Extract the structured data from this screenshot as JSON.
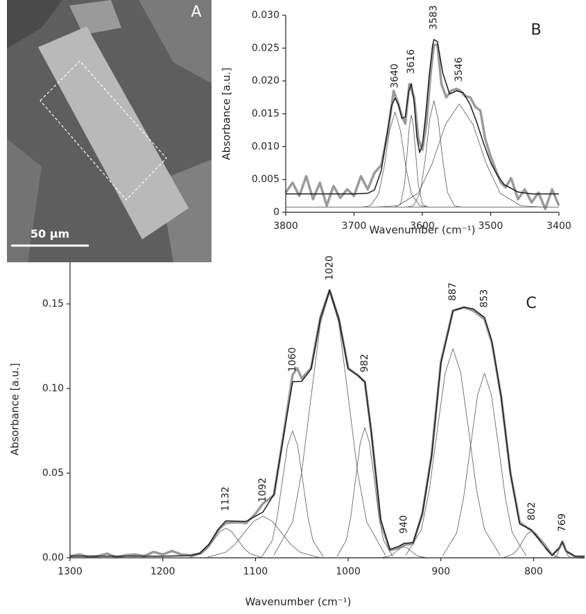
{
  "panel_a": {
    "label": "A",
    "scale_bar": "50 μm"
  },
  "chart_data": [
    {
      "type": "line",
      "panel": "B",
      "x_label": "Wavenumber (cm⁻¹)",
      "y_label": "Absorbance [a.u.]",
      "xlim": [
        3800,
        3400
      ],
      "xticks": [
        3800,
        3700,
        3600,
        3500,
        3400
      ],
      "ylim": [
        0,
        0.03
      ],
      "yticks": [
        0,
        0.005,
        {
          "value": 0.01,
          "label": "0.010"
        },
        0.015,
        {
          "value": 0.02,
          "label": "0.020"
        },
        0.025,
        {
          "value": 0.03,
          "label": "0.030"
        }
      ],
      "series": [
        {
          "color": "#9a9a9a",
          "x": [
            3800,
            3790,
            3780,
            3770,
            3760,
            3750,
            3740,
            3730,
            3720,
            3710,
            3700,
            3690,
            3680,
            3670,
            3660,
            3650,
            3642,
            3636,
            3630,
            3625,
            3619,
            3612,
            3606,
            3600,
            3594,
            3588,
            3583,
            3578,
            3572,
            3565,
            3558,
            3550,
            3544,
            3538,
            3530,
            3522,
            3515,
            3508,
            3500,
            3492,
            3485,
            3478,
            3470,
            3460,
            3450,
            3440,
            3430,
            3420,
            3410,
            3400
          ],
          "values": [
            0.003,
            0.0045,
            0.0025,
            0.0055,
            0.002,
            0.0045,
            0.001,
            0.004,
            0.0022,
            0.0035,
            0.0025,
            0.0055,
            0.0035,
            0.006,
            0.0072,
            0.0125,
            0.0185,
            0.0168,
            0.0147,
            0.0135,
            0.0195,
            0.0175,
            0.0113,
            0.0095,
            0.0135,
            0.021,
            0.0255,
            0.0255,
            0.0195,
            0.0175,
            0.0185,
            0.0188,
            0.0185,
            0.0177,
            0.0175,
            0.016,
            0.0155,
            0.0112,
            0.0085,
            0.0063,
            0.0045,
            0.0038,
            0.0052,
            0.002,
            0.0035,
            0.0015,
            0.003,
            0.0005,
            0.0035,
            0.001
          ]
        },
        {
          "color": "#1a1a1a",
          "x": [
            3800,
            3700,
            3680,
            3670,
            3660,
            3650,
            3645,
            3640,
            3635,
            3630,
            3625,
            3620,
            3616,
            3612,
            3608,
            3604,
            3600,
            3595,
            3590,
            3585,
            3583,
            3578,
            3570,
            3560,
            3550,
            3540,
            3530,
            3520,
            3510,
            3500,
            3490,
            3480,
            3460,
            3440,
            3400
          ],
          "values": [
            0.0028,
            0.0028,
            0.0029,
            0.0034,
            0.0064,
            0.0131,
            0.0162,
            0.0174,
            0.0164,
            0.0143,
            0.0145,
            0.0184,
            0.0196,
            0.0167,
            0.0115,
            0.0091,
            0.0102,
            0.0149,
            0.0208,
            0.0254,
            0.0263,
            0.026,
            0.0212,
            0.018,
            0.0185,
            0.0182,
            0.0164,
            0.0136,
            0.0104,
            0.0076,
            0.0056,
            0.0042,
            0.0031,
            0.0028,
            0.0028
          ]
        },
        {
          "color": "#444444",
          "x": [
            3800,
            3400
          ],
          "values": [
            0.0008,
            0.0008
          ]
        },
        {
          "color": "#555555",
          "x": [
            3688,
            3676,
            3664,
            3656,
            3648,
            3640,
            3632,
            3624,
            3616,
            3604,
            3592
          ],
          "values": [
            0.0008,
            0.001,
            0.0028,
            0.0068,
            0.0124,
            0.0153,
            0.0124,
            0.0068,
            0.0028,
            0.001,
            0.0008
          ]
        },
        {
          "color": "#555555",
          "x": [
            3640,
            3632,
            3626,
            3622,
            3619,
            3616,
            3613,
            3610,
            3606,
            3600,
            3592
          ],
          "values": [
            0.0008,
            0.0012,
            0.0043,
            0.0093,
            0.0131,
            0.0148,
            0.0131,
            0.0093,
            0.0043,
            0.0012,
            0.0008
          ]
        },
        {
          "color": "#555555",
          "x": [
            3623,
            3613,
            3603,
            3596,
            3589,
            3583,
            3577,
            3570,
            3563,
            3553,
            3543
          ],
          "values": [
            0.0008,
            0.001,
            0.003,
            0.0078,
            0.0143,
            0.017,
            0.0143,
            0.0078,
            0.003,
            0.001,
            0.0008
          ]
        },
        {
          "color": "#555555",
          "x": [
            3666,
            3636,
            3606,
            3586,
            3566,
            3546,
            3526,
            3506,
            3486,
            3456,
            3426
          ],
          "values": [
            0.0008,
            0.001,
            0.0029,
            0.0073,
            0.0134,
            0.0165,
            0.0134,
            0.0073,
            0.0029,
            0.001,
            0.0008
          ]
        }
      ],
      "annotations": [
        {
          "label": "3640",
          "x": 3640
        },
        {
          "label": "3616",
          "x": 3616
        },
        {
          "label": "3583",
          "x": 3583
        },
        {
          "label": "3546",
          "x": 3546
        }
      ]
    },
    {
      "type": "line",
      "panel": "C",
      "x_label": "Wavenumber (cm⁻¹)",
      "y_label": "Absorbance [a.u.]",
      "xlim": [
        1300,
        745
      ],
      "xticks": [
        1300,
        1200,
        1100,
        1000,
        900,
        800
      ],
      "ylim": [
        0,
        0.175
      ],
      "yticks": [
        {
          "value": 0,
          "label": "0.00"
        },
        0.05,
        {
          "value": 0.1,
          "label": "0.10"
        },
        0.15
      ],
      "series": [
        {
          "color": "#9a9a9a",
          "x": [
            1300,
            1290,
            1280,
            1270,
            1260,
            1250,
            1240,
            1230,
            1220,
            1210,
            1200,
            1190,
            1180,
            1170,
            1160,
            1150,
            1140,
            1132,
            1120,
            1110,
            1100,
            1092,
            1080,
            1070,
            1060,
            1055,
            1050,
            1040,
            1030,
            1020,
            1010,
            1000,
            990,
            982,
            975,
            965,
            955,
            945,
            940,
            930,
            920,
            910,
            900,
            887,
            875,
            865,
            853,
            845,
            835,
            825,
            815,
            802,
            790,
            780,
            772,
            769,
            765,
            755,
            745
          ],
          "values": [
            0.001,
            0.002,
            0.0005,
            0.001,
            0.0025,
            0.0003,
            0.0015,
            0.002,
            0.001,
            0.0035,
            0.002,
            0.004,
            0.002,
            0.0015,
            0.0025,
            0.0075,
            0.0165,
            0.0205,
            0.021,
            0.0205,
            0.026,
            0.032,
            0.037,
            0.072,
            0.108,
            0.112,
            0.106,
            0.112,
            0.142,
            0.158,
            0.141,
            0.112,
            0.108,
            0.104,
            0.074,
            0.021,
            0.0045,
            0.0058,
            0.0075,
            0.0085,
            0.026,
            0.061,
            0.116,
            0.146,
            0.148,
            0.146,
            0.141,
            0.127,
            0.095,
            0.05,
            0.021,
            0.016,
            0.009,
            0.0016,
            0.006,
            0.0095,
            0.004,
            0.0005,
            0.0002
          ]
        },
        {
          "color": "#1a1a1a",
          "x": [
            1300,
            1200,
            1170,
            1160,
            1150,
            1140,
            1132,
            1120,
            1110,
            1100,
            1092,
            1080,
            1070,
            1060,
            1050,
            1040,
            1030,
            1020,
            1010,
            1000,
            990,
            982,
            975,
            965,
            955,
            945,
            940,
            930,
            920,
            910,
            900,
            887,
            875,
            865,
            853,
            845,
            835,
            825,
            815,
            802,
            790,
            780,
            772,
            769,
            765,
            755,
            745
          ],
          "values": [
            0.001,
            0.001,
            0.0013,
            0.0028,
            0.0081,
            0.0169,
            0.0218,
            0.0216,
            0.0215,
            0.0246,
            0.027,
            0.0376,
            0.0709,
            0.104,
            0.1043,
            0.1115,
            0.1415,
            0.1582,
            0.141,
            0.1115,
            0.1079,
            0.1038,
            0.0738,
            0.0229,
            0.0049,
            0.0069,
            0.0085,
            0.009,
            0.026,
            0.06,
            0.115,
            0.146,
            0.148,
            0.147,
            0.142,
            0.128,
            0.095,
            0.05,
            0.02,
            0.0163,
            0.0078,
            0.0014,
            0.006,
            0.0096,
            0.0039,
            0.001,
            0.001
          ]
        },
        {
          "color": "#555555",
          "x": [
            1171,
            1158,
            1151.5,
            1145,
            1138.5,
            1132,
            1125.5,
            1119,
            1112.5,
            1106,
            1093
          ],
          "values": [
            0.0002,
            0.0024,
            0.0057,
            0.0106,
            0.0154,
            0.0175,
            0.0154,
            0.0106,
            0.0057,
            0.0024,
            0.0002
          ]
        },
        {
          "color": "#555555",
          "x": [
            1152,
            1132,
            1122,
            1112,
            1102,
            1092,
            1082,
            1072,
            1062,
            1052,
            1032
          ],
          "values": [
            0.0003,
            0.0033,
            0.008,
            0.0149,
            0.0216,
            0.0245,
            0.0216,
            0.0149,
            0.008,
            0.0033,
            0.0003
          ]
        },
        {
          "color": "#555555",
          "x": [
            1093,
            1082,
            1076.5,
            1071,
            1065.5,
            1060,
            1054.5,
            1049,
            1043.5,
            1038,
            1027
          ],
          "values": [
            0.0008,
            0.0101,
            0.0244,
            0.0455,
            0.0662,
            0.075,
            0.0662,
            0.0455,
            0.0244,
            0.0101,
            0.0008
          ]
        },
        {
          "color": "#555555",
          "x": [
            1080,
            1060,
            1050,
            1040,
            1030,
            1020,
            1010,
            1000,
            990,
            980,
            960
          ],
          "values": [
            0.0017,
            0.0212,
            0.051,
            0.0953,
            0.1385,
            0.157,
            0.1385,
            0.0953,
            0.051,
            0.0212,
            0.0017
          ]
        },
        {
          "color": "#555555",
          "x": [
            1012,
            1002,
            997,
            992,
            987,
            982,
            977,
            972,
            967,
            962,
            952
          ],
          "values": [
            0.0008,
            0.0104,
            0.025,
            0.0467,
            0.0679,
            0.077,
            0.0679,
            0.0467,
            0.025,
            0.0104,
            0.0008
          ]
        },
        {
          "color": "#555555",
          "x": [
            964,
            956,
            952,
            948,
            944,
            940,
            936,
            932,
            928,
            924,
            916
          ],
          "values": [
            0.0001,
            0.0009,
            0.0021,
            0.0039,
            0.0057,
            0.0065,
            0.0057,
            0.0039,
            0.0021,
            0.0009,
            0.0001
          ]
        },
        {
          "color": "#555555",
          "x": [
            938,
            921,
            912.5,
            904,
            895.5,
            887,
            878.5,
            870,
            861.5,
            853,
            836
          ],
          "values": [
            0.0014,
            0.0167,
            0.0401,
            0.075,
            0.1089,
            0.1235,
            0.1089,
            0.075,
            0.0401,
            0.0167,
            0.0014
          ]
        },
        {
          "color": "#555555",
          "x": [
            898,
            883,
            875.5,
            868,
            860.5,
            853,
            845.5,
            838,
            830.5,
            823,
            808
          ],
          "values": [
            0.0012,
            0.0147,
            0.0354,
            0.0662,
            0.0961,
            0.109,
            0.0961,
            0.0662,
            0.0354,
            0.0147,
            0.0012
          ]
        },
        {
          "color": "#555555",
          "x": [
            832,
            822,
            817,
            812,
            807,
            802,
            797,
            792,
            787,
            782,
            772
          ],
          "values": [
            0.0002,
            0.0022,
            0.0052,
            0.0097,
            0.0141,
            0.016,
            0.0141,
            0.0097,
            0.0052,
            0.0022,
            0.0002
          ]
        },
        {
          "color": "#555555",
          "x": [
            778,
            775,
            773.5,
            772,
            770.5,
            769,
            767.5,
            766,
            764.5,
            763,
            760
          ],
          "values": [
            0.0001,
            0.0013,
            0.0031,
            0.0058,
            0.0084,
            0.0095,
            0.0084,
            0.0058,
            0.0031,
            0.0013,
            0.0001
          ]
        }
      ],
      "annotations": [
        {
          "label": "1132",
          "x": 1132
        },
        {
          "label": "1092",
          "x": 1092
        },
        {
          "label": "1060",
          "x": 1060
        },
        {
          "label": "1020",
          "x": 1020
        },
        {
          "label": "982",
          "x": 982
        },
        {
          "label": "940",
          "x": 940
        },
        {
          "label": "887",
          "x": 887
        },
        {
          "label": "853",
          "x": 853
        },
        {
          "label": "802",
          "x": 802
        },
        {
          "label": "769",
          "x": 769
        }
      ]
    }
  ]
}
